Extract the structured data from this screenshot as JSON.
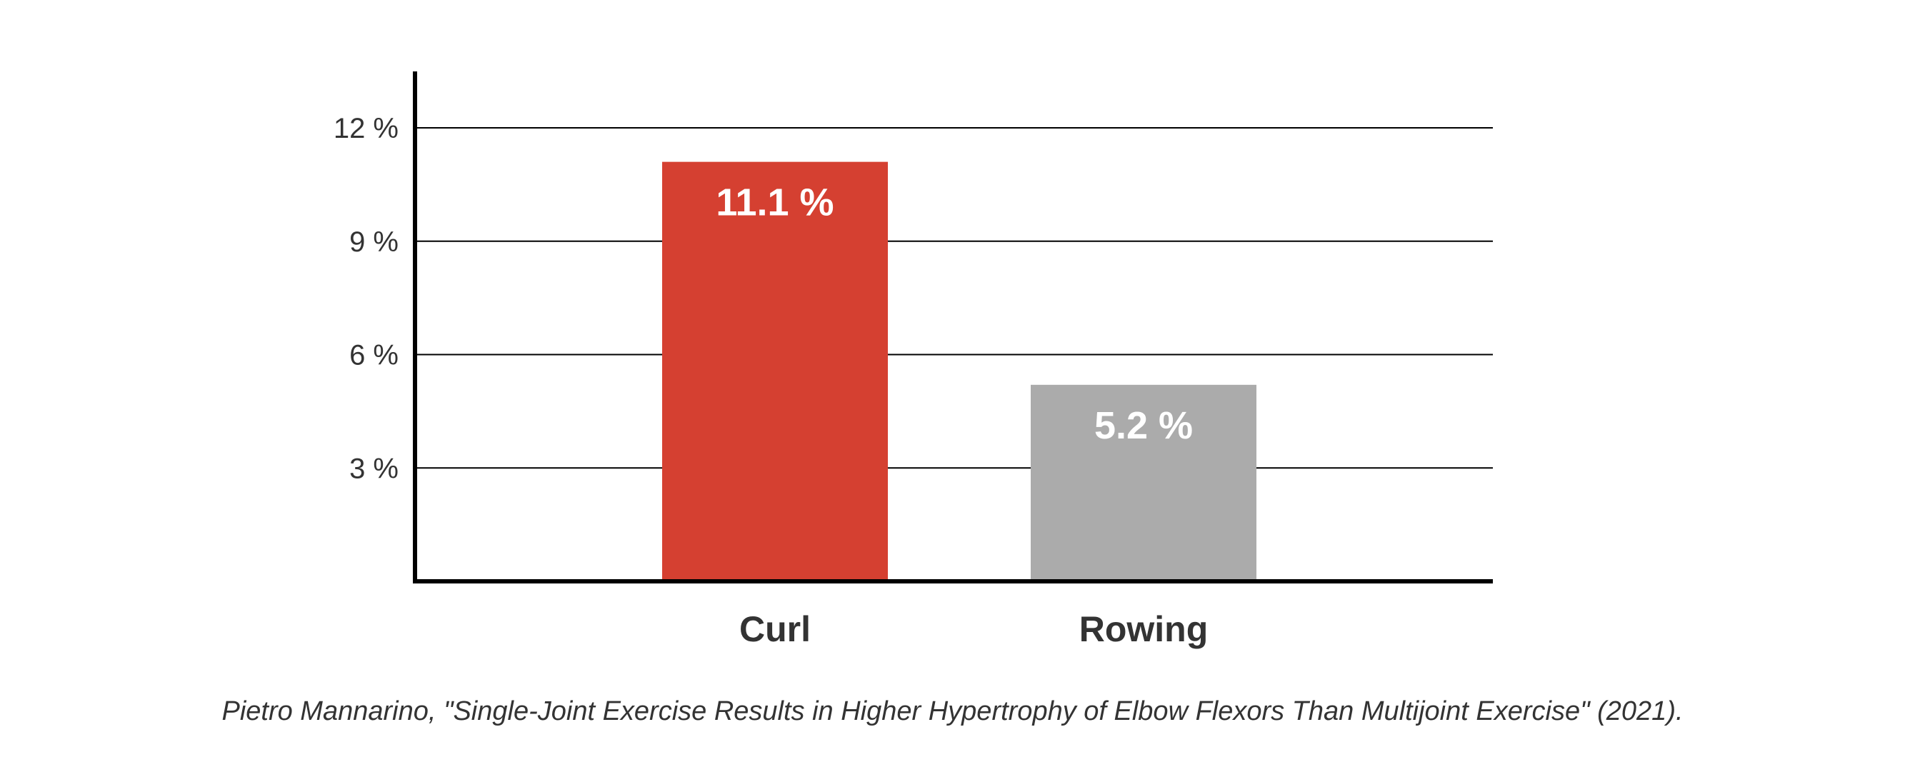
{
  "chart_data": {
    "type": "bar",
    "categories": [
      "Curl",
      "Rowing"
    ],
    "values": [
      11.1,
      5.2
    ],
    "data_labels": [
      "11.1 %",
      "5.2 %"
    ],
    "colors": [
      "#d54031",
      "#ababab"
    ],
    "yticks": [
      3,
      6,
      9,
      12
    ],
    "ytick_labels": [
      "3 %",
      "6 %",
      "9 %",
      "12 %"
    ],
    "ylim": [
      0,
      13.5
    ],
    "grid": true,
    "legend": "none"
  },
  "caption": "Pietro Mannarino, \"Single-Joint Exercise Results in Higher Hypertrophy of Elbow Flexors Than Multijoint Exercise\" (2021)."
}
